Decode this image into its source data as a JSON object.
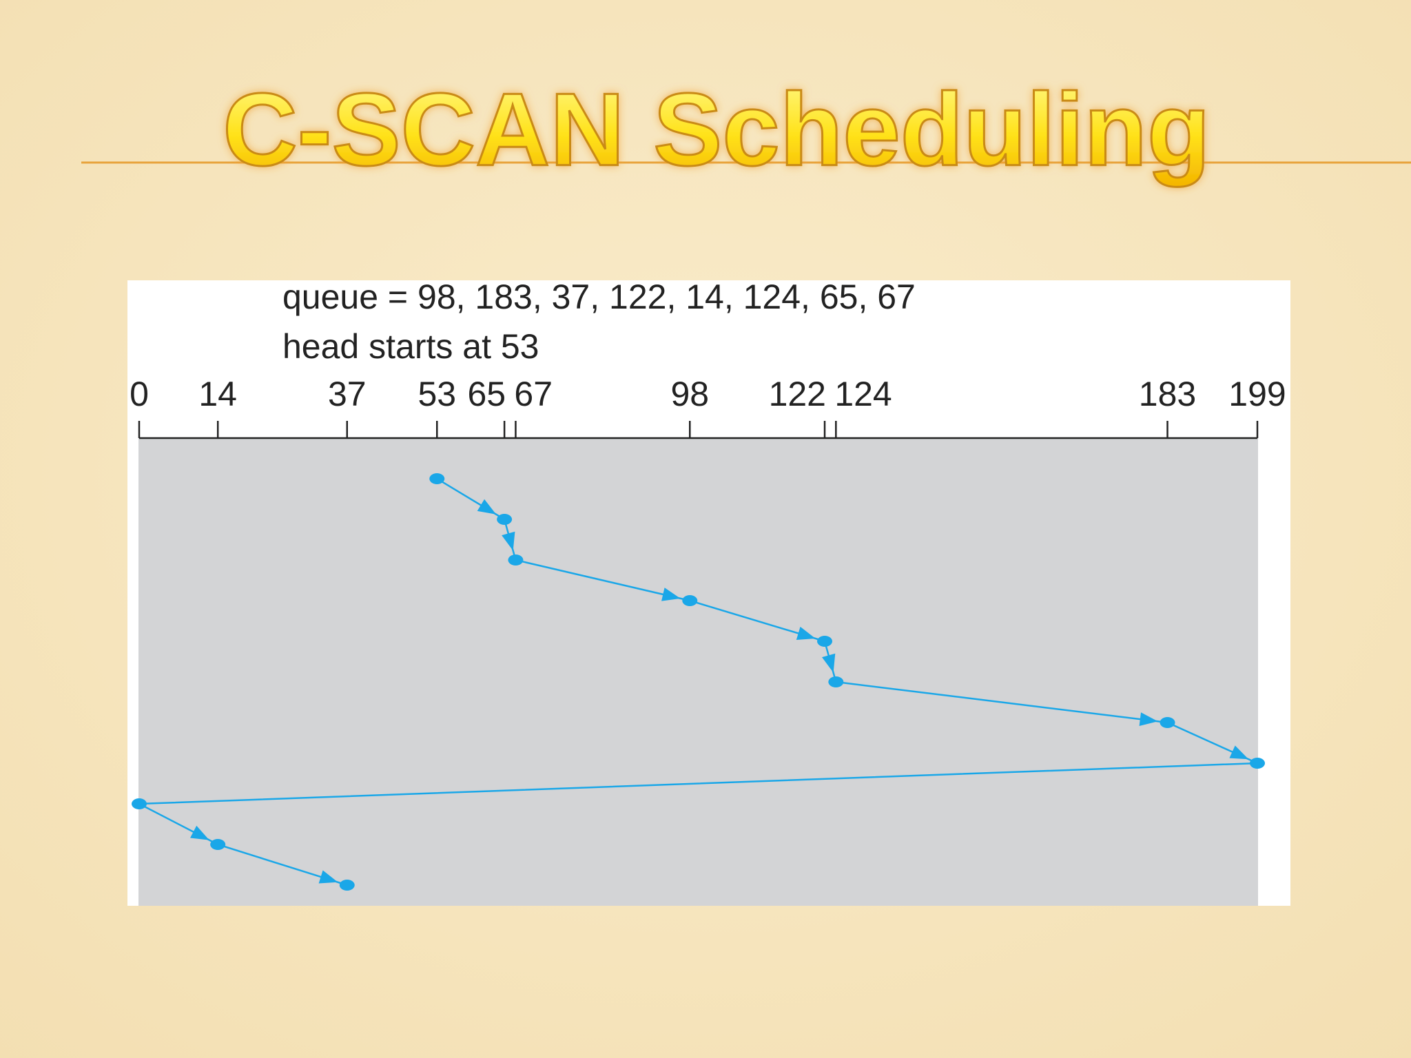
{
  "chart_data": {
    "type": "line",
    "title": "C-SCAN Scheduling",
    "subtitle": [
      "queue = 98, 183, 37, 122, 14, 124, 65, 67",
      "head starts at 53"
    ],
    "values": [
      53,
      65,
      67,
      98,
      122,
      124,
      183,
      199,
      0,
      14,
      37
    ],
    "color": "#1aa7e8",
    "xlim": [
      0,
      199
    ],
    "xticks": [
      0,
      14,
      37,
      53,
      65,
      67,
      98,
      122,
      124,
      183,
      199
    ]
  }
}
